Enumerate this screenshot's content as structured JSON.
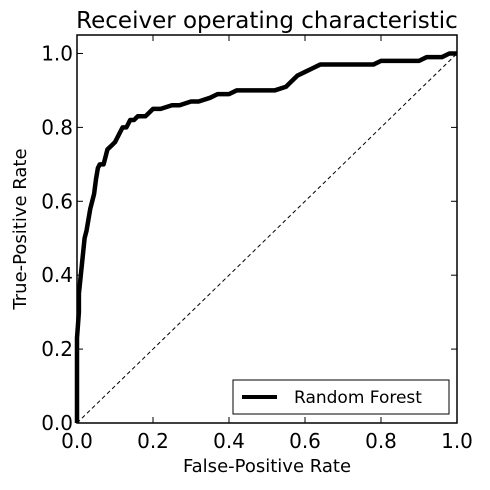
{
  "chart_data": {
    "type": "line",
    "title": "Receiver operating characteristic",
    "xlabel": "False-Positive Rate",
    "ylabel": "True-Positive Rate",
    "xlim": [
      0.0,
      1.0
    ],
    "ylim": [
      0.0,
      1.05
    ],
    "xticks": [
      0.0,
      0.2,
      0.4,
      0.6,
      0.8,
      1.0
    ],
    "yticks": [
      0.0,
      0.2,
      0.4,
      0.6,
      0.8,
      1.0
    ],
    "xtick_labels": [
      "0.0",
      "0.2",
      "0.4",
      "0.6",
      "0.8",
      "1.0"
    ],
    "ytick_labels": [
      "0.0",
      "0.2",
      "0.4",
      "0.6",
      "0.8",
      "1.0"
    ],
    "grid": false,
    "legend_position": "lower-right",
    "series": [
      {
        "name": "Random Forest",
        "color": "#000000",
        "style": "solid",
        "x": [
          0.0,
          0.0,
          0.005,
          0.005,
          0.01,
          0.015,
          0.02,
          0.025,
          0.03,
          0.035,
          0.04,
          0.045,
          0.05,
          0.055,
          0.06,
          0.065,
          0.07,
          0.075,
          0.08,
          0.09,
          0.1,
          0.11,
          0.12,
          0.13,
          0.14,
          0.15,
          0.16,
          0.17,
          0.18,
          0.19,
          0.2,
          0.22,
          0.25,
          0.27,
          0.3,
          0.32,
          0.35,
          0.37,
          0.4,
          0.42,
          0.45,
          0.48,
          0.5,
          0.52,
          0.55,
          0.56,
          0.58,
          0.6,
          0.62,
          0.64,
          0.66,
          0.7,
          0.75,
          0.78,
          0.8,
          0.85,
          0.9,
          0.92,
          0.94,
          0.96,
          0.98,
          0.99,
          1.0
        ],
        "y": [
          0.0,
          0.23,
          0.3,
          0.35,
          0.4,
          0.45,
          0.5,
          0.52,
          0.55,
          0.58,
          0.6,
          0.62,
          0.66,
          0.69,
          0.7,
          0.7,
          0.7,
          0.72,
          0.74,
          0.75,
          0.76,
          0.78,
          0.8,
          0.8,
          0.82,
          0.82,
          0.83,
          0.83,
          0.83,
          0.84,
          0.85,
          0.85,
          0.86,
          0.86,
          0.87,
          0.87,
          0.88,
          0.89,
          0.89,
          0.9,
          0.9,
          0.9,
          0.9,
          0.9,
          0.91,
          0.92,
          0.94,
          0.95,
          0.96,
          0.97,
          0.97,
          0.97,
          0.97,
          0.97,
          0.98,
          0.98,
          0.98,
          0.99,
          0.99,
          0.99,
          1.0,
          1.0,
          1.0
        ]
      },
      {
        "name": "",
        "color": "#000000",
        "style": "dashed",
        "x": [
          0.0,
          1.0
        ],
        "y": [
          0.0,
          1.0
        ]
      }
    ]
  }
}
